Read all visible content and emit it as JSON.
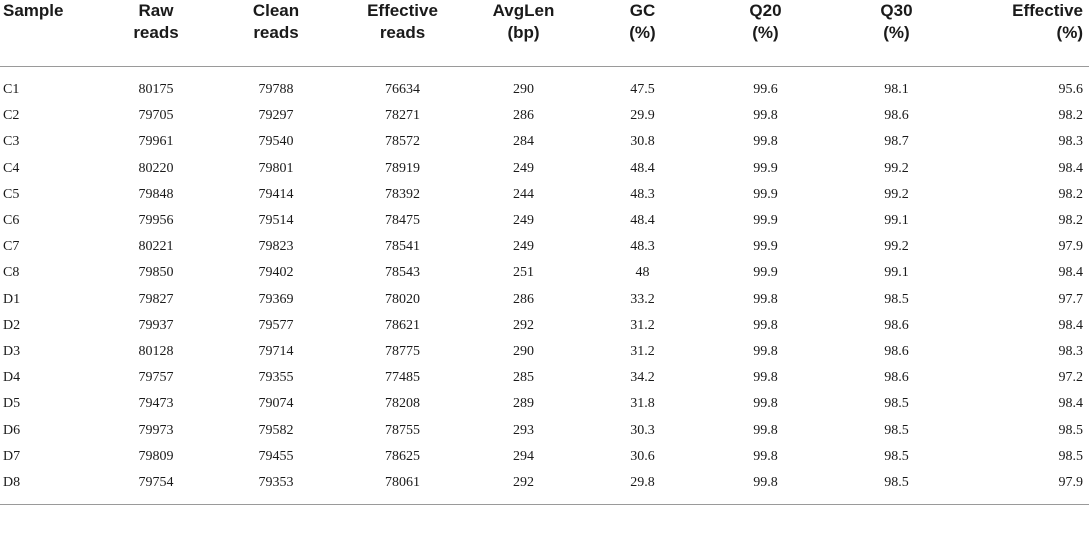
{
  "headers": [
    {
      "line1": "Sample",
      "line2": ""
    },
    {
      "line1": "Raw",
      "line2": "reads"
    },
    {
      "line1": "Clean",
      "line2": "reads"
    },
    {
      "line1": "Effective",
      "line2": "reads"
    },
    {
      "line1": "AvgLen",
      "line2": "(bp)"
    },
    {
      "line1": "GC",
      "line2": "(%)"
    },
    {
      "line1": "Q20",
      "line2": "(%)"
    },
    {
      "line1": "Q30",
      "line2": "(%)"
    },
    {
      "line1": "Effective",
      "line2": "(%)"
    }
  ],
  "rows": [
    [
      "C1",
      "80175",
      "79788",
      "76634",
      "290",
      "47.5",
      "99.6",
      "98.1",
      "95.6"
    ],
    [
      "C2",
      "79705",
      "79297",
      "78271",
      "286",
      "29.9",
      "99.8",
      "98.6",
      "98.2"
    ],
    [
      "C3",
      "79961",
      "79540",
      "78572",
      "284",
      "30.8",
      "99.8",
      "98.7",
      "98.3"
    ],
    [
      "C4",
      "80220",
      "79801",
      "78919",
      "249",
      "48.4",
      "99.9",
      "99.2",
      "98.4"
    ],
    [
      "C5",
      "79848",
      "79414",
      "78392",
      "244",
      "48.3",
      "99.9",
      "99.2",
      "98.2"
    ],
    [
      "C6",
      "79956",
      "79514",
      "78475",
      "249",
      "48.4",
      "99.9",
      "99.1",
      "98.2"
    ],
    [
      "C7",
      "80221",
      "79823",
      "78541",
      "249",
      "48.3",
      "99.9",
      "99.2",
      "97.9"
    ],
    [
      "C8",
      "79850",
      "79402",
      "78543",
      "251",
      "48",
      "99.9",
      "99.1",
      "98.4"
    ],
    [
      "D1",
      "79827",
      "79369",
      "78020",
      "286",
      "33.2",
      "99.8",
      "98.5",
      "97.7"
    ],
    [
      "D2",
      "79937",
      "79577",
      "78621",
      "292",
      "31.2",
      "99.8",
      "98.6",
      "98.4"
    ],
    [
      "D3",
      "80128",
      "79714",
      "78775",
      "290",
      "31.2",
      "99.8",
      "98.6",
      "98.3"
    ],
    [
      "D4",
      "79757",
      "79355",
      "77485",
      "285",
      "34.2",
      "99.8",
      "98.6",
      "97.2"
    ],
    [
      "D5",
      "79473",
      "79074",
      "78208",
      "289",
      "31.8",
      "99.8",
      "98.5",
      "98.4"
    ],
    [
      "D6",
      "79973",
      "79582",
      "78755",
      "293",
      "30.3",
      "99.8",
      "98.5",
      "98.5"
    ],
    [
      "D7",
      "79809",
      "79455",
      "78625",
      "294",
      "30.6",
      "99.8",
      "98.5",
      "98.5"
    ],
    [
      "D8",
      "79754",
      "79353",
      "78061",
      "292",
      "29.8",
      "99.8",
      "98.5",
      "97.9"
    ]
  ]
}
